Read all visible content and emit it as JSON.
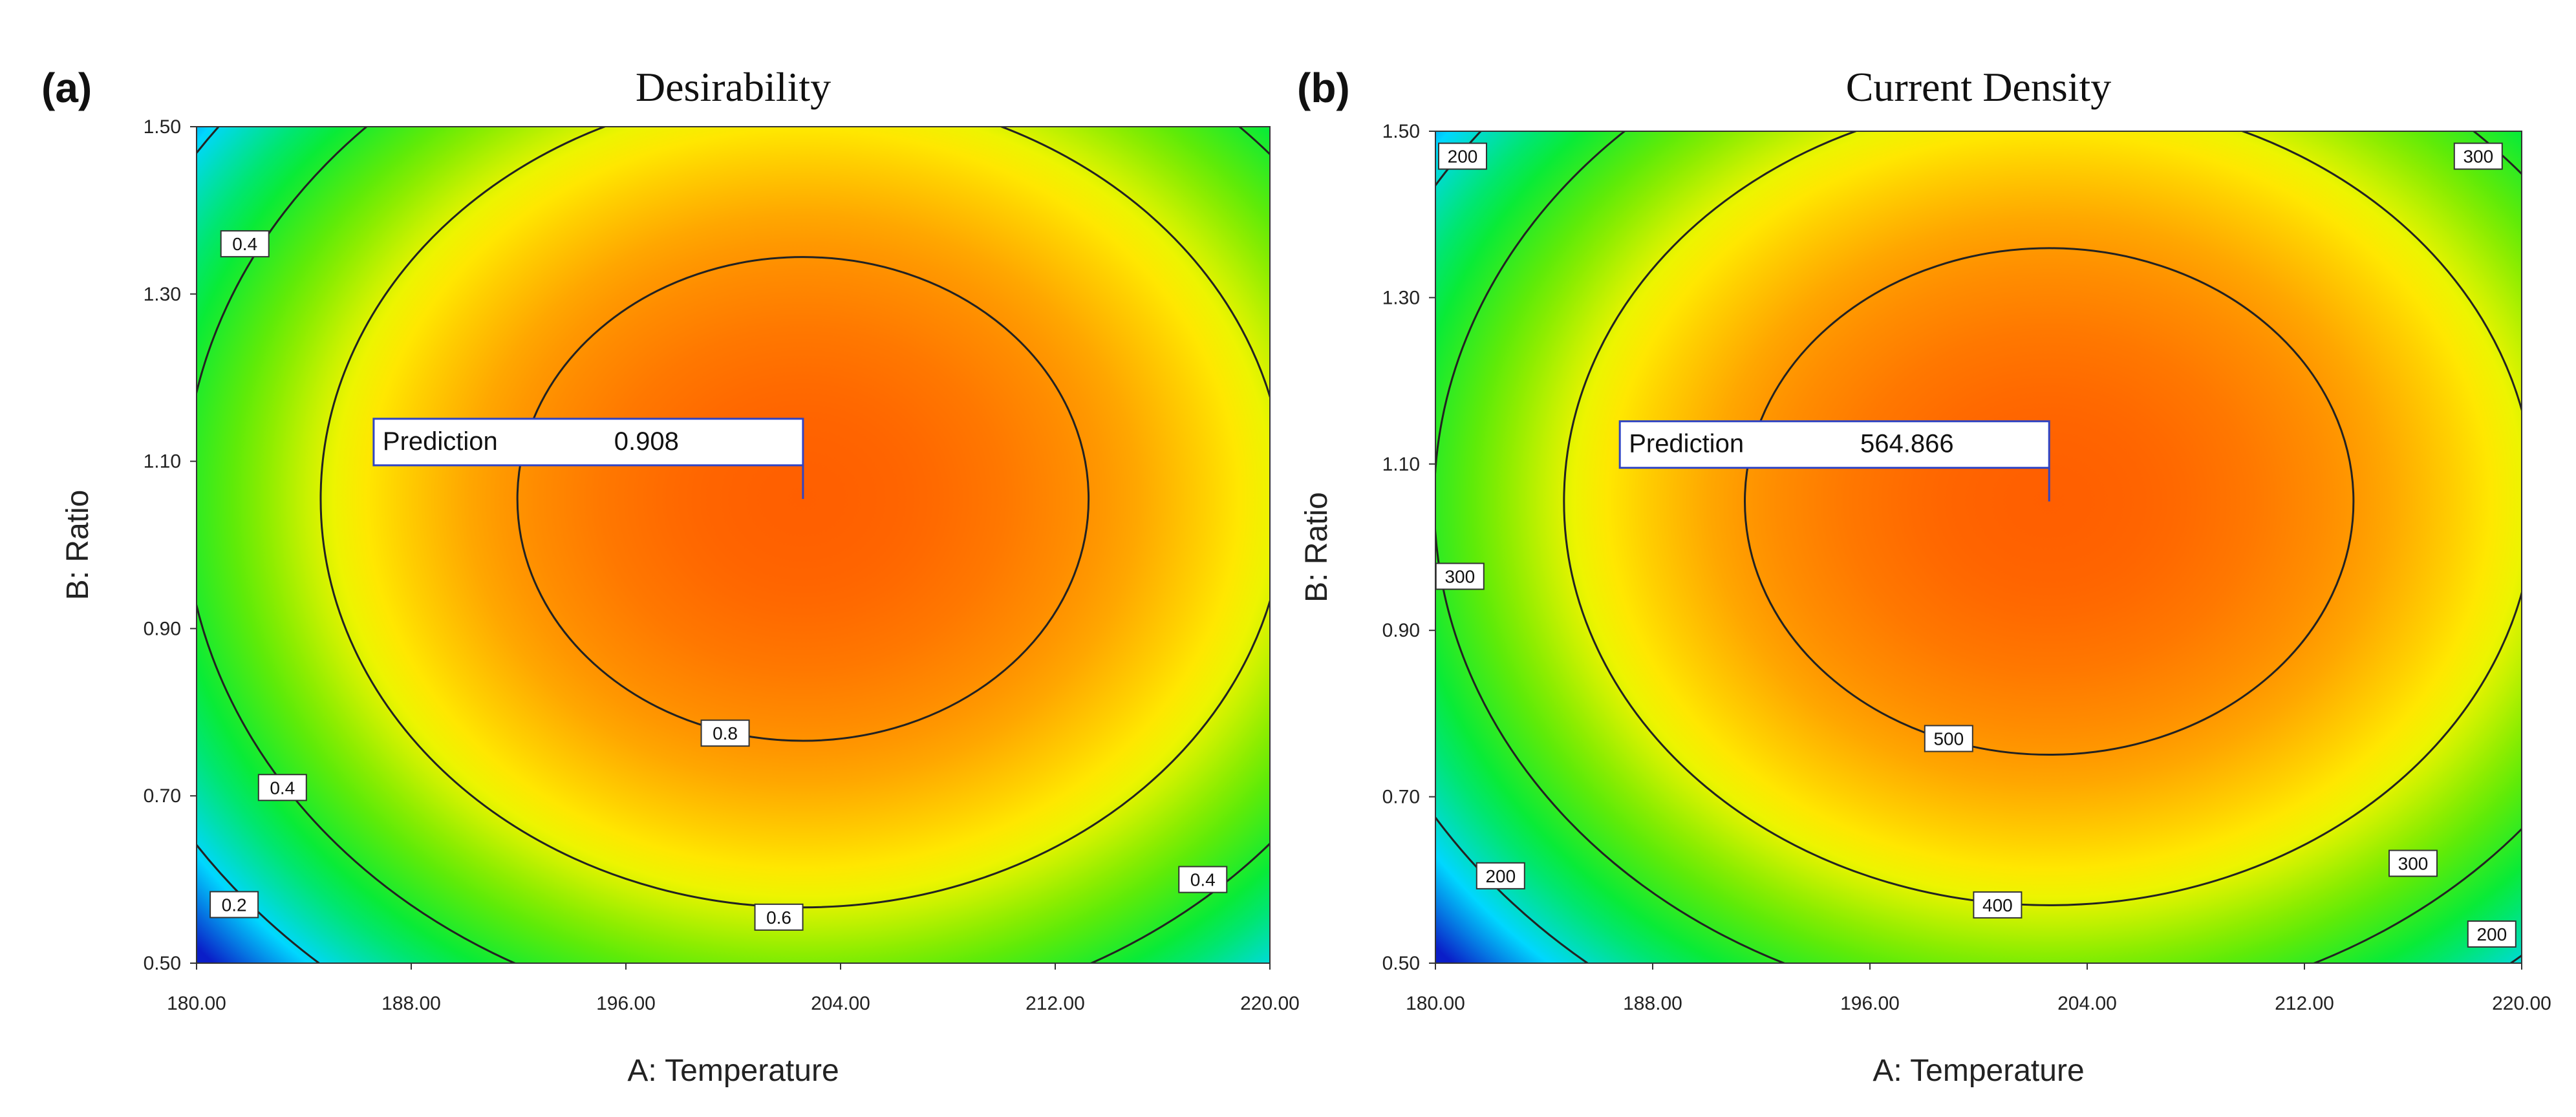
{
  "chart_data": [
    {
      "type": "contour",
      "panel_label": "(a)",
      "title": "Desirability",
      "xlabel": "A: Temperature",
      "ylabel": "B: Ratio",
      "xlim": [
        180,
        220
      ],
      "ylim": [
        0.5,
        1.5
      ],
      "x_ticks": [
        "180.00",
        "188.00",
        "196.00",
        "204.00",
        "212.00",
        "220.00"
      ],
      "y_ticks": [
        "0.50",
        "0.70",
        "0.90",
        "1.10",
        "1.30",
        "1.50"
      ],
      "peak": {
        "x": 202.6,
        "y": 1.055,
        "value": 0.908
      },
      "surface_range": [
        0.05,
        0.908
      ],
      "contours": [
        {
          "level": 0.2,
          "label": "0.2"
        },
        {
          "level": 0.4,
          "label": "0.4"
        },
        {
          "level": 0.6,
          "label": "0.6"
        },
        {
          "level": 0.8,
          "label": "0.8"
        }
      ],
      "contour_label_positions": [
        {
          "label": "0.4",
          "x": 181.8,
          "y": 1.36
        },
        {
          "label": "0.4",
          "x": 183.2,
          "y": 0.71
        },
        {
          "label": "0.4",
          "x": 217.5,
          "y": 0.6
        },
        {
          "label": "0.2",
          "x": 181.4,
          "y": 0.57
        },
        {
          "label": "0.6",
          "x": 201.7,
          "y": 0.555
        },
        {
          "label": "0.8",
          "x": 199.7,
          "y": 0.775
        }
      ],
      "prediction": {
        "label": "Prediction",
        "value": "0.908",
        "x": 202.6,
        "y": 1.055
      }
    },
    {
      "type": "contour",
      "panel_label": "(b)",
      "title": "Current Density",
      "xlabel": "A: Temperature",
      "ylabel": "B: Ratio",
      "xlim": [
        180,
        220
      ],
      "ylim": [
        0.5,
        1.5
      ],
      "x_ticks": [
        "180.00",
        "188.00",
        "196.00",
        "204.00",
        "212.00",
        "220.00"
      ],
      "y_ticks": [
        "0.50",
        "0.70",
        "0.90",
        "1.10",
        "1.30",
        "1.50"
      ],
      "peak": {
        "x": 202.6,
        "y": 1.055,
        "value": 564.866
      },
      "surface_range": [
        100,
        564.866
      ],
      "contours": [
        {
          "level": 200,
          "label": "200"
        },
        {
          "level": 300,
          "label": "300"
        },
        {
          "level": 400,
          "label": "400"
        },
        {
          "level": 500,
          "label": "500"
        }
      ],
      "contour_label_positions": [
        {
          "label": "200",
          "x": 181.0,
          "y": 1.47
        },
        {
          "label": "300",
          "x": 218.4,
          "y": 1.47
        },
        {
          "label": "300",
          "x": 180.9,
          "y": 0.965
        },
        {
          "label": "500",
          "x": 198.9,
          "y": 0.77
        },
        {
          "label": "400",
          "x": 200.7,
          "y": 0.57
        },
        {
          "label": "200",
          "x": 182.4,
          "y": 0.605
        },
        {
          "label": "300",
          "x": 216.0,
          "y": 0.62
        },
        {
          "label": "200",
          "x": 218.9,
          "y": 0.535
        }
      ],
      "prediction": {
        "label": "Prediction",
        "value": "564.866",
        "x": 202.6,
        "y": 1.055
      }
    }
  ]
}
